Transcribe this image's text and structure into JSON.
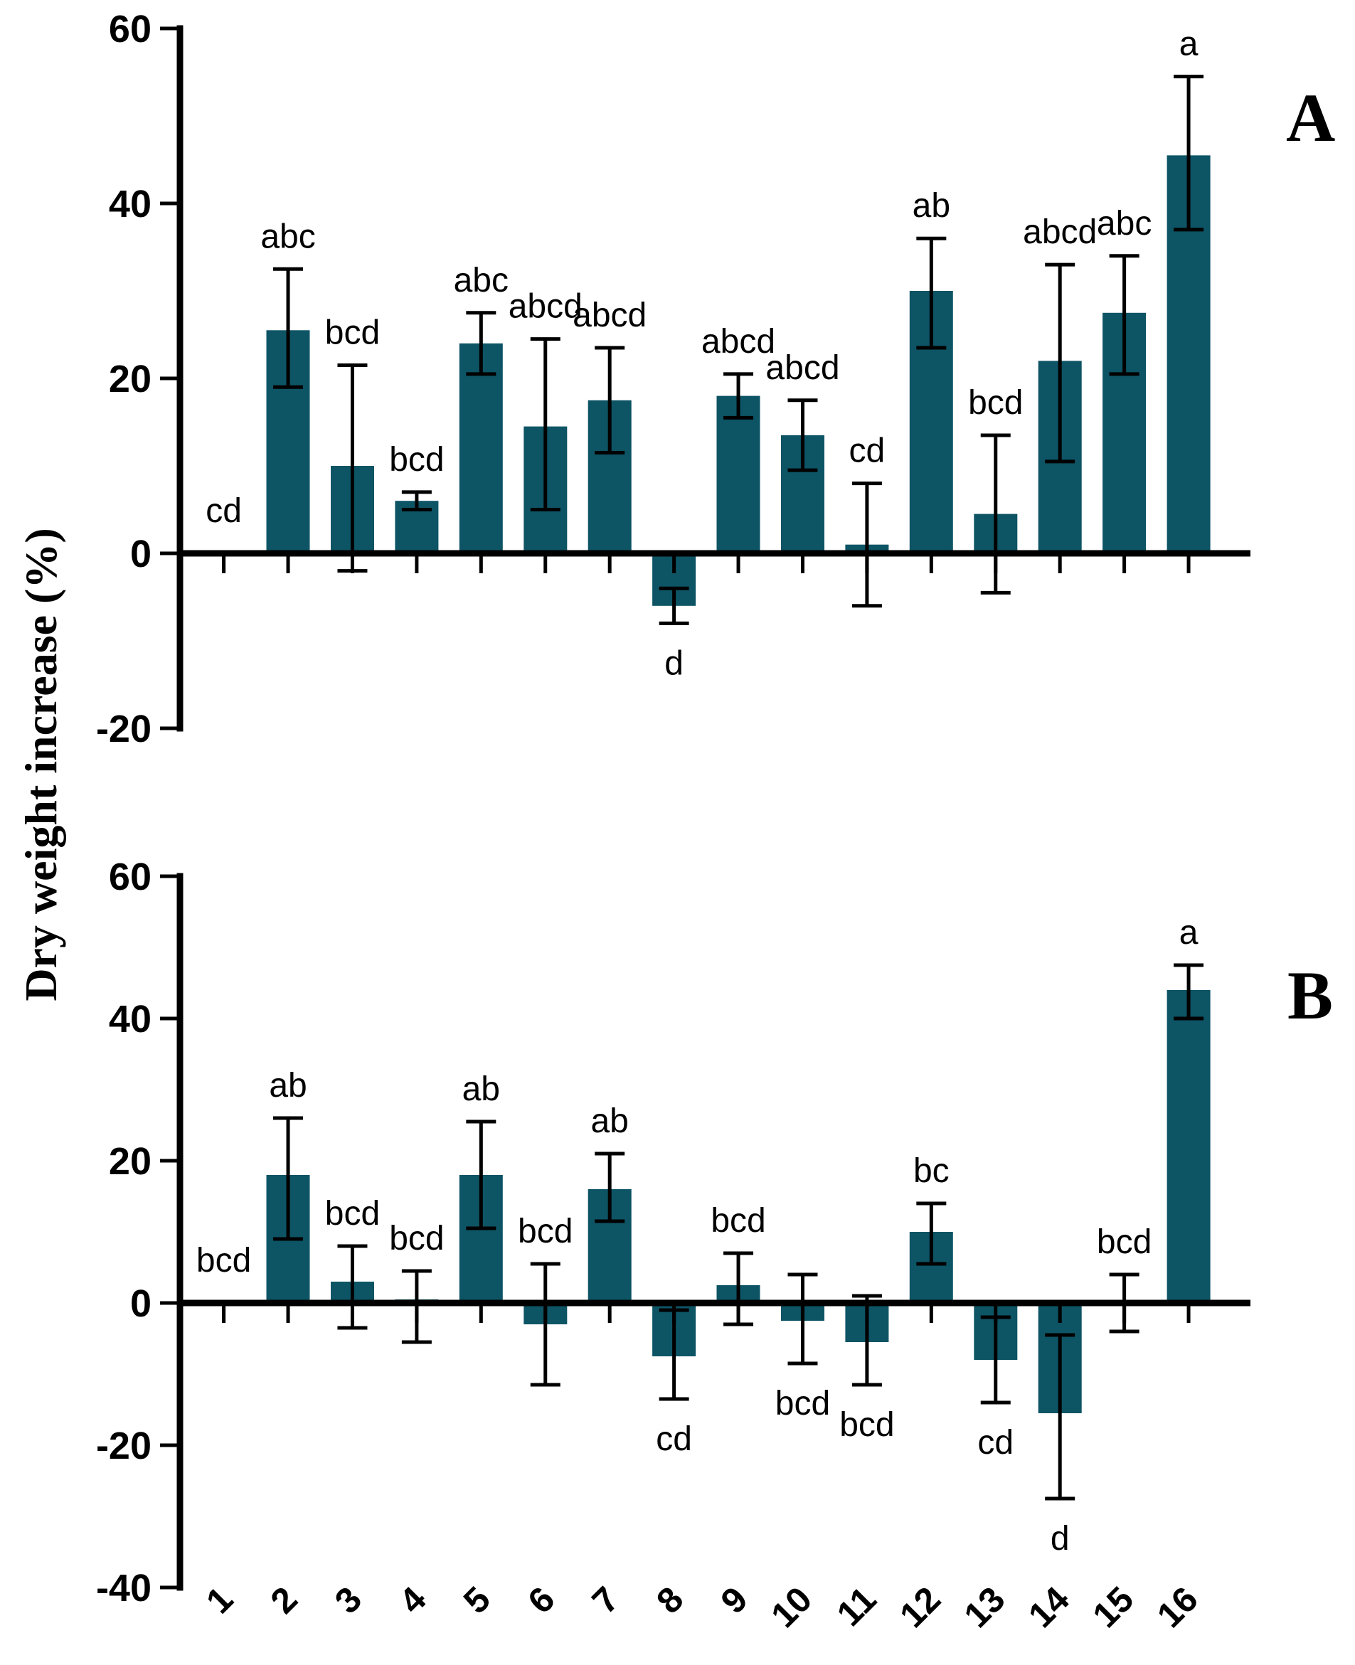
{
  "figure": {
    "y_axis_title": "Dry weight increase (%)"
  },
  "colors": {
    "bar_fill": "#0d5465",
    "axis": "#000000",
    "text": "#000000"
  },
  "chart_data": [
    {
      "type": "bar",
      "panel": "A",
      "ylabel": "Dry weight increase (%)",
      "xlabel": "",
      "grid": false,
      "legend": "none",
      "ylim": [
        -20,
        60
      ],
      "yticks": [
        60,
        40,
        20,
        0,
        -20
      ],
      "x_tick_labels_shown": false,
      "categories": [
        "1",
        "2",
        "3",
        "4",
        "5",
        "6",
        "7",
        "8",
        "9",
        "10",
        "11",
        "12",
        "13",
        "14",
        "15",
        "16"
      ],
      "values": [
        0,
        25.5,
        10,
        6,
        24,
        14.5,
        17.5,
        -6,
        18,
        13.5,
        1,
        30,
        4.5,
        22,
        27.5,
        45.5
      ],
      "error_low": [
        null,
        19,
        -2,
        5,
        20.5,
        5,
        11.5,
        -8,
        15.5,
        9.5,
        -6,
        23.5,
        -4.5,
        10.5,
        20.5,
        37
      ],
      "error_high": [
        null,
        32.5,
        21.5,
        7,
        27.5,
        24.5,
        23.5,
        -4,
        20.5,
        17.5,
        8,
        36,
        13.5,
        33,
        34,
        54.5
      ],
      "sig_labels": [
        "cd",
        "abc",
        "bcd",
        "bcd",
        "abc",
        "abcd",
        "abcd",
        "d",
        "abcd",
        "abcd",
        "cd",
        "ab",
        "bcd",
        "abcd",
        "abc",
        "a"
      ],
      "sig_side": [
        "above",
        "above",
        "above",
        "above",
        "above",
        "above",
        "above",
        "below",
        "above",
        "above",
        "above",
        "above",
        "above",
        "above",
        "above",
        "above"
      ]
    },
    {
      "type": "bar",
      "panel": "B",
      "ylabel": "Dry weight increase (%)",
      "xlabel": "",
      "grid": false,
      "legend": "none",
      "ylim": [
        -40,
        60
      ],
      "yticks": [
        60,
        40,
        20,
        0,
        -20,
        -40
      ],
      "x_tick_labels_shown": true,
      "categories": [
        "1",
        "2",
        "3",
        "4",
        "5",
        "6",
        "7",
        "8",
        "9",
        "10",
        "11",
        "12",
        "13",
        "14",
        "15",
        "16"
      ],
      "values": [
        0,
        18,
        3,
        0.5,
        18,
        -3,
        16,
        -7.5,
        2.5,
        -2.5,
        -5.5,
        10,
        -8,
        -15.5,
        0,
        44
      ],
      "error_low": [
        null,
        9,
        -3.5,
        -5.5,
        10.5,
        -11.5,
        11.5,
        -13.5,
        -3,
        -8.5,
        -11.5,
        5.5,
        -14,
        -27.5,
        -4,
        40
      ],
      "error_high": [
        null,
        26,
        8,
        4.5,
        25.5,
        5.5,
        21,
        -1,
        7,
        4,
        1,
        14,
        -2,
        -4.5,
        4,
        47.5
      ],
      "sig_labels": [
        "bcd",
        "ab",
        "bcd",
        "bcd",
        "ab",
        "bcd",
        "ab",
        "cd",
        "bcd",
        "bcd",
        "bcd",
        "bc",
        "cd",
        "d",
        "bcd",
        "a"
      ],
      "sig_side": [
        "above",
        "above",
        "above",
        "above",
        "above",
        "above",
        "above",
        "below",
        "above",
        "below",
        "below",
        "above",
        "below",
        "below",
        "above",
        "above"
      ]
    }
  ]
}
